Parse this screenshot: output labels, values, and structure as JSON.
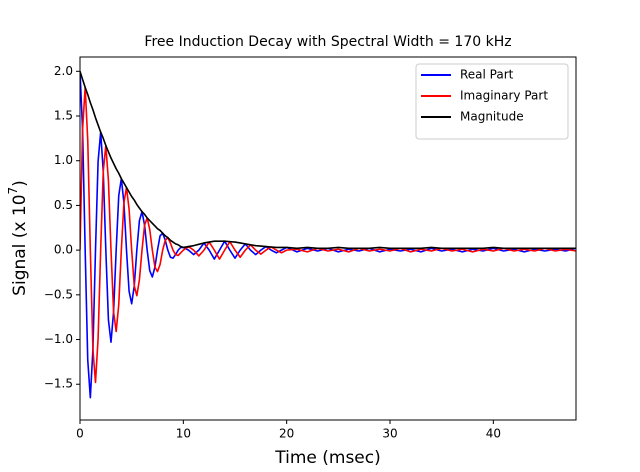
{
  "chart_data": {
    "type": "line",
    "title": "Free Induction Decay with Spectral Width = 170 kHz",
    "xlabel": "Time (msec)",
    "ylabel": {
      "base": "Signal (x 10",
      "exponent": "7",
      "close": ")"
    },
    "x": [
      0,
      0.25,
      0.5,
      0.75,
      1,
      1.25,
      1.5,
      1.75,
      2,
      2.25,
      2.5,
      2.75,
      3,
      3.25,
      3.5,
      3.75,
      4,
      4.25,
      4.5,
      4.75,
      5,
      5.25,
      5.5,
      5.75,
      6,
      6.25,
      6.5,
      6.75,
      7,
      7.25,
      7.5,
      7.75,
      8,
      8.25,
      8.5,
      8.75,
      9,
      9.25,
      9.5,
      9.75,
      10,
      10.5,
      11,
      11.5,
      12,
      12.5,
      13,
      13.5,
      14,
      14.5,
      15,
      15.5,
      16,
      16.5,
      17,
      17.5,
      18,
      18.5,
      19,
      19.5,
      20,
      21,
      22,
      23,
      24,
      25,
      26,
      27,
      28,
      29,
      30,
      31,
      32,
      33,
      34,
      35,
      36,
      37,
      38,
      39,
      40,
      41,
      42,
      43,
      44,
      45,
      46,
      47,
      48
    ],
    "series": [
      {
        "name": "Real Part",
        "color": "#0000ff",
        "values": [
          2.0,
          1.35,
          0,
          -1.23,
          -1.65,
          -1.11,
          0,
          0.99,
          1.32,
          0.88,
          0,
          -0.78,
          -1.03,
          -0.69,
          0,
          0.61,
          0.8,
          0.53,
          0,
          -0.46,
          -0.6,
          -0.4,
          0,
          0.33,
          0.43,
          0.28,
          0,
          -0.23,
          -0.3,
          -0.19,
          0,
          0.16,
          0.19,
          0.11,
          0,
          -0.08,
          -0.09,
          -0.05,
          0,
          0.03,
          0.03,
          0,
          -0.05,
          0,
          0.08,
          0,
          -0.1,
          0,
          0.1,
          0,
          -0.09,
          0,
          0.07,
          0,
          -0.05,
          0,
          0.04,
          0,
          -0.03,
          0,
          0.03,
          -0.02,
          0.02,
          -0.01,
          0.02,
          -0.02,
          0.01,
          -0.01,
          0.02,
          -0.02,
          0.01,
          -0.01,
          0.01,
          -0.02,
          0.02,
          -0.01,
          0.01,
          -0.02,
          0.01,
          -0.01,
          0.02,
          -0.01,
          0.01,
          -0.02,
          0.01,
          -0.01,
          0.01,
          -0.01,
          0.02
        ]
      },
      {
        "name": "Imaginary Part",
        "color": "#ff0000",
        "values": [
          0,
          1.35,
          1.82,
          1.23,
          0,
          -1.11,
          -1.48,
          -0.99,
          0,
          0.88,
          1.17,
          0.78,
          0,
          -0.69,
          -0.91,
          -0.61,
          0,
          0.53,
          0.7,
          0.46,
          0,
          -0.4,
          -0.51,
          -0.33,
          0,
          0.28,
          0.36,
          0.23,
          0,
          -0.19,
          -0.24,
          -0.16,
          0,
          0.11,
          0.14,
          0.08,
          0,
          -0.05,
          -0.06,
          -0.03,
          0,
          0.04,
          0,
          -0.065,
          0,
          0.09,
          0,
          -0.1,
          0,
          0.095,
          0,
          -0.08,
          0,
          0.06,
          0,
          -0.045,
          0,
          0.035,
          0,
          -0.03,
          0,
          0.01,
          -0.02,
          0.02,
          -0.01,
          0.01,
          -0.02,
          0.02,
          -0.01,
          0.01,
          -0.01,
          0.02,
          -0.02,
          0.01,
          -0.01,
          0.02,
          -0.01,
          0.01,
          -0.02,
          0.01,
          -0.01,
          0.02,
          -0.01,
          0.01,
          -0.01,
          0.02,
          -0.01,
          0.01,
          -0.01
        ]
      },
      {
        "name": "Magnitude",
        "color": "#000000",
        "values": [
          2.0,
          1.91,
          1.82,
          1.74,
          1.65,
          1.57,
          1.48,
          1.4,
          1.32,
          1.25,
          1.17,
          1.1,
          1.03,
          0.97,
          0.91,
          0.86,
          0.8,
          0.75,
          0.7,
          0.65,
          0.6,
          0.56,
          0.51,
          0.47,
          0.43,
          0.4,
          0.36,
          0.33,
          0.3,
          0.27,
          0.24,
          0.22,
          0.19,
          0.16,
          0.14,
          0.11,
          0.09,
          0.07,
          0.06,
          0.04,
          0.03,
          0.04,
          0.05,
          0.065,
          0.08,
          0.09,
          0.1,
          0.1,
          0.1,
          0.095,
          0.09,
          0.08,
          0.07,
          0.06,
          0.05,
          0.045,
          0.04,
          0.035,
          0.03,
          0.03,
          0.03,
          0.02,
          0.03,
          0.02,
          0.02,
          0.03,
          0.02,
          0.02,
          0.02,
          0.03,
          0.02,
          0.02,
          0.02,
          0.02,
          0.03,
          0.02,
          0.02,
          0.02,
          0.02,
          0.02,
          0.03,
          0.02,
          0.02,
          0.02,
          0.02,
          0.02,
          0.02,
          0.02,
          0.02
        ]
      }
    ],
    "xlim": [
      0,
      48
    ],
    "xticks": [
      0,
      10,
      20,
      30,
      40
    ],
    "ylim": [
      -1.9,
      2.16
    ],
    "yticks": [
      {
        "value": -1.5,
        "label": "−1.5"
      },
      {
        "value": -1,
        "label": "−1.0"
      },
      {
        "value": -0.5,
        "label": "−0.5"
      },
      {
        "value": 0,
        "label": "0.0"
      },
      {
        "value": 0.5,
        "label": "0.5"
      },
      {
        "value": 1,
        "label": "1.0"
      },
      {
        "value": 1.5,
        "label": "1.5"
      },
      {
        "value": 2,
        "label": "2.0"
      }
    ],
    "legend": "upper right",
    "grid": false
  }
}
